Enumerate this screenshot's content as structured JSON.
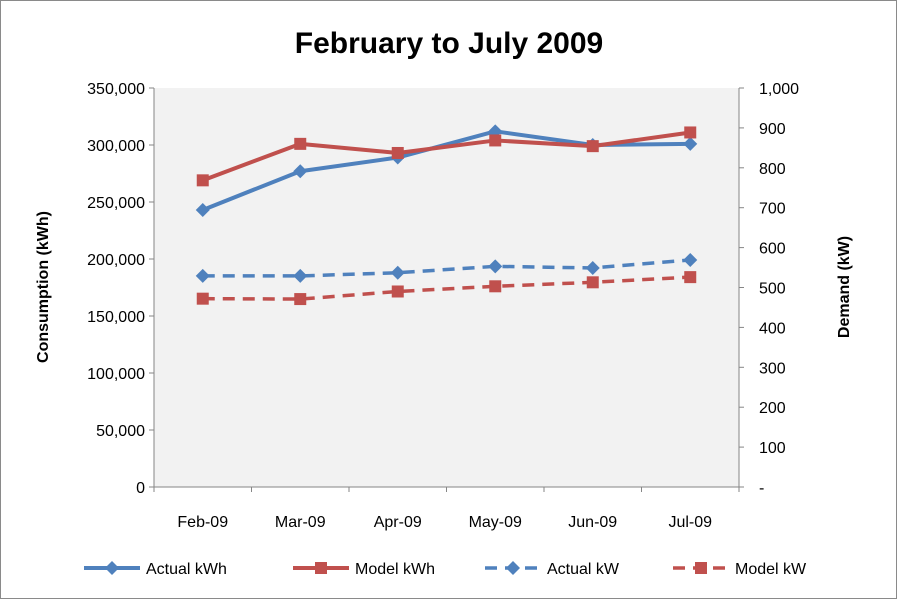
{
  "chart_data": {
    "type": "line",
    "title": "February to July 2009",
    "categories": [
      "Feb-09",
      "Mar-09",
      "Apr-09",
      "May-09",
      "Jun-09",
      "Jul-09"
    ],
    "ylabel": "Consumption (kWh)",
    "y2label": "Demand (kW)",
    "ylim": [
      0,
      350000
    ],
    "y2lim": [
      0,
      1000
    ],
    "yticks": [
      "0",
      "50,000",
      "100,000",
      "150,000",
      "200,000",
      "250,000",
      "300,000",
      "350,000"
    ],
    "y2ticks": [
      "-",
      "100",
      "200",
      "300",
      "400",
      "500",
      "600",
      "700",
      "800",
      "900",
      "1,000"
    ],
    "grid": false,
    "legend": "bottom",
    "plot_background": "#f2f2f2",
    "series": [
      {
        "name": "Actual kWh",
        "axis": "left",
        "color": "#4f81bd",
        "marker": "diamond",
        "dashed": false,
        "values": [
          243000,
          277000,
          289000,
          312000,
          300000,
          301000
        ]
      },
      {
        "name": "Model kWh",
        "axis": "left",
        "color": "#c0504d",
        "marker": "square",
        "dashed": false,
        "values": [
          269000,
          301000,
          293000,
          304000,
          299000,
          311000
        ]
      },
      {
        "name": "Actual kW",
        "axis": "right",
        "color": "#4f81bd",
        "marker": "diamond",
        "dashed": true,
        "values": [
          529,
          529,
          537,
          553,
          549,
          569
        ]
      },
      {
        "name": "Model kW",
        "axis": "right",
        "color": "#c0504d",
        "marker": "square",
        "dashed": true,
        "values": [
          472,
          471,
          490,
          503,
          513,
          526
        ]
      }
    ]
  }
}
